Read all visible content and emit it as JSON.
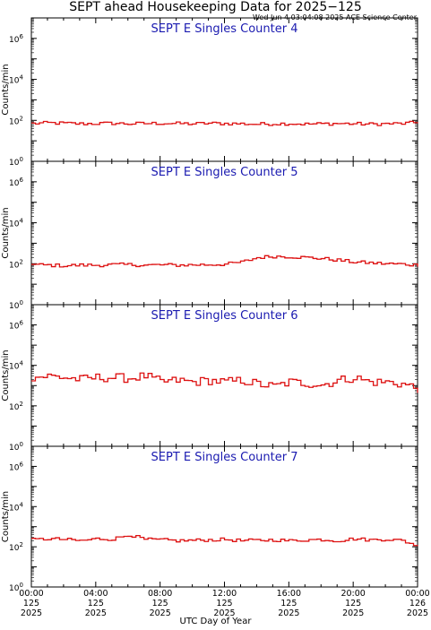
{
  "title": "SEPT ahead Housekeeping Data for 2025−125",
  "timestamp": "Wed Jun  4 03:04:08 2025 ACE Science Center",
  "xlabel": "UTC Day of Year",
  "colors": {
    "series": "#dd1111",
    "panel_title": "#1a1ab0",
    "axis": "#000000"
  },
  "chart_data": [
    {
      "type": "line",
      "title": "SEPT E Singles Counter 4",
      "ylabel": "Counts/min",
      "yscale": "log",
      "ylim": [
        1,
        10000000
      ],
      "yticks": [
        {
          "value": 1,
          "base": "10",
          "exp": "0"
        },
        {
          "value": 100,
          "base": "10",
          "exp": "2"
        },
        {
          "value": 10000,
          "base": "10",
          "exp": "4"
        },
        {
          "value": 1000000,
          "base": "10",
          "exp": "6"
        }
      ],
      "x_hours": [
        0,
        1,
        2,
        3,
        4,
        5,
        6,
        7,
        8,
        9,
        10,
        11,
        12,
        13,
        14,
        15,
        16,
        17,
        18,
        19,
        20,
        21,
        22,
        23,
        24
      ],
      "values": [
        70,
        75,
        72,
        68,
        70,
        72,
        68,
        70,
        72,
        70,
        68,
        72,
        70,
        68,
        65,
        68,
        70,
        65,
        68,
        70,
        68,
        65,
        68,
        70,
        80
      ]
    },
    {
      "type": "line",
      "title": "SEPT E Singles Counter 5",
      "ylabel": "Counts/min",
      "yscale": "log",
      "ylim": [
        1,
        10000000
      ],
      "yticks": [
        {
          "value": 1,
          "base": "10",
          "exp": "0"
        },
        {
          "value": 100,
          "base": "10",
          "exp": "2"
        },
        {
          "value": 10000,
          "base": "10",
          "exp": "4"
        },
        {
          "value": 1000000,
          "base": "10",
          "exp": "6"
        }
      ],
      "x_hours": [
        0,
        1,
        2,
        3,
        4,
        5,
        6,
        7,
        8,
        9,
        10,
        11,
        12,
        13,
        14,
        15,
        16,
        17,
        18,
        19,
        20,
        21,
        22,
        23,
        24
      ],
      "values": [
        90,
        85,
        80,
        85,
        85,
        90,
        90,
        85,
        88,
        85,
        88,
        90,
        95,
        120,
        200,
        230,
        220,
        200,
        180,
        150,
        120,
        110,
        100,
        95,
        85
      ]
    },
    {
      "type": "line",
      "title": "SEPT E Singles Counter 6",
      "ylabel": "Counts/min",
      "yscale": "log",
      "ylim": [
        1,
        10000000
      ],
      "yticks": [
        {
          "value": 1,
          "base": "10",
          "exp": "0"
        },
        {
          "value": 100,
          "base": "10",
          "exp": "2"
        },
        {
          "value": 10000,
          "base": "10",
          "exp": "4"
        },
        {
          "value": 1000000,
          "base": "10",
          "exp": "6"
        }
      ],
      "x_hours": [
        0,
        1,
        2,
        3,
        4,
        5,
        6,
        7,
        8,
        9,
        10,
        11,
        12,
        13,
        14,
        15,
        16,
        17,
        18,
        19,
        20,
        21,
        22,
        23,
        24
      ],
      "values": [
        2500,
        3000,
        2500,
        2000,
        2500,
        2500,
        2300,
        3000,
        1500,
        1800,
        1500,
        1800,
        1500,
        1800,
        1200,
        900,
        1500,
        1300,
        1100,
        1800,
        2500,
        1500,
        1500,
        1200,
        700
      ]
    },
    {
      "type": "line",
      "title": "SEPT E Singles Counter 7",
      "ylabel": "Counts/min",
      "yscale": "log",
      "ylim": [
        1,
        10000000
      ],
      "yticks": [
        {
          "value": 1,
          "base": "10",
          "exp": "0"
        },
        {
          "value": 100,
          "base": "10",
          "exp": "2"
        },
        {
          "value": 10000,
          "base": "10",
          "exp": "4"
        },
        {
          "value": 1000000,
          "base": "10",
          "exp": "6"
        }
      ],
      "x_hours": [
        0,
        1,
        2,
        3,
        4,
        5,
        6,
        7,
        8,
        9,
        10,
        11,
        12,
        13,
        14,
        15,
        16,
        17,
        18,
        19,
        20,
        21,
        22,
        23,
        24
      ],
      "values": [
        220,
        250,
        230,
        200,
        250,
        240,
        400,
        230,
        220,
        200,
        210,
        220,
        230,
        200,
        210,
        220,
        200,
        220,
        230,
        200,
        250,
        220,
        240,
        200,
        110
      ]
    }
  ],
  "x_ticks": [
    {
      "time": "00:00",
      "day": "125",
      "year": "2025"
    },
    {
      "time": "04:00",
      "day": "125",
      "year": "2025"
    },
    {
      "time": "08:00",
      "day": "125",
      "year": "2025"
    },
    {
      "time": "12:00",
      "day": "125",
      "year": "2025"
    },
    {
      "time": "16:00",
      "day": "125",
      "year": "2025"
    },
    {
      "time": "20:00",
      "day": "125",
      "year": "2025"
    },
    {
      "time": "00:00",
      "day": "126",
      "year": "2025"
    }
  ]
}
